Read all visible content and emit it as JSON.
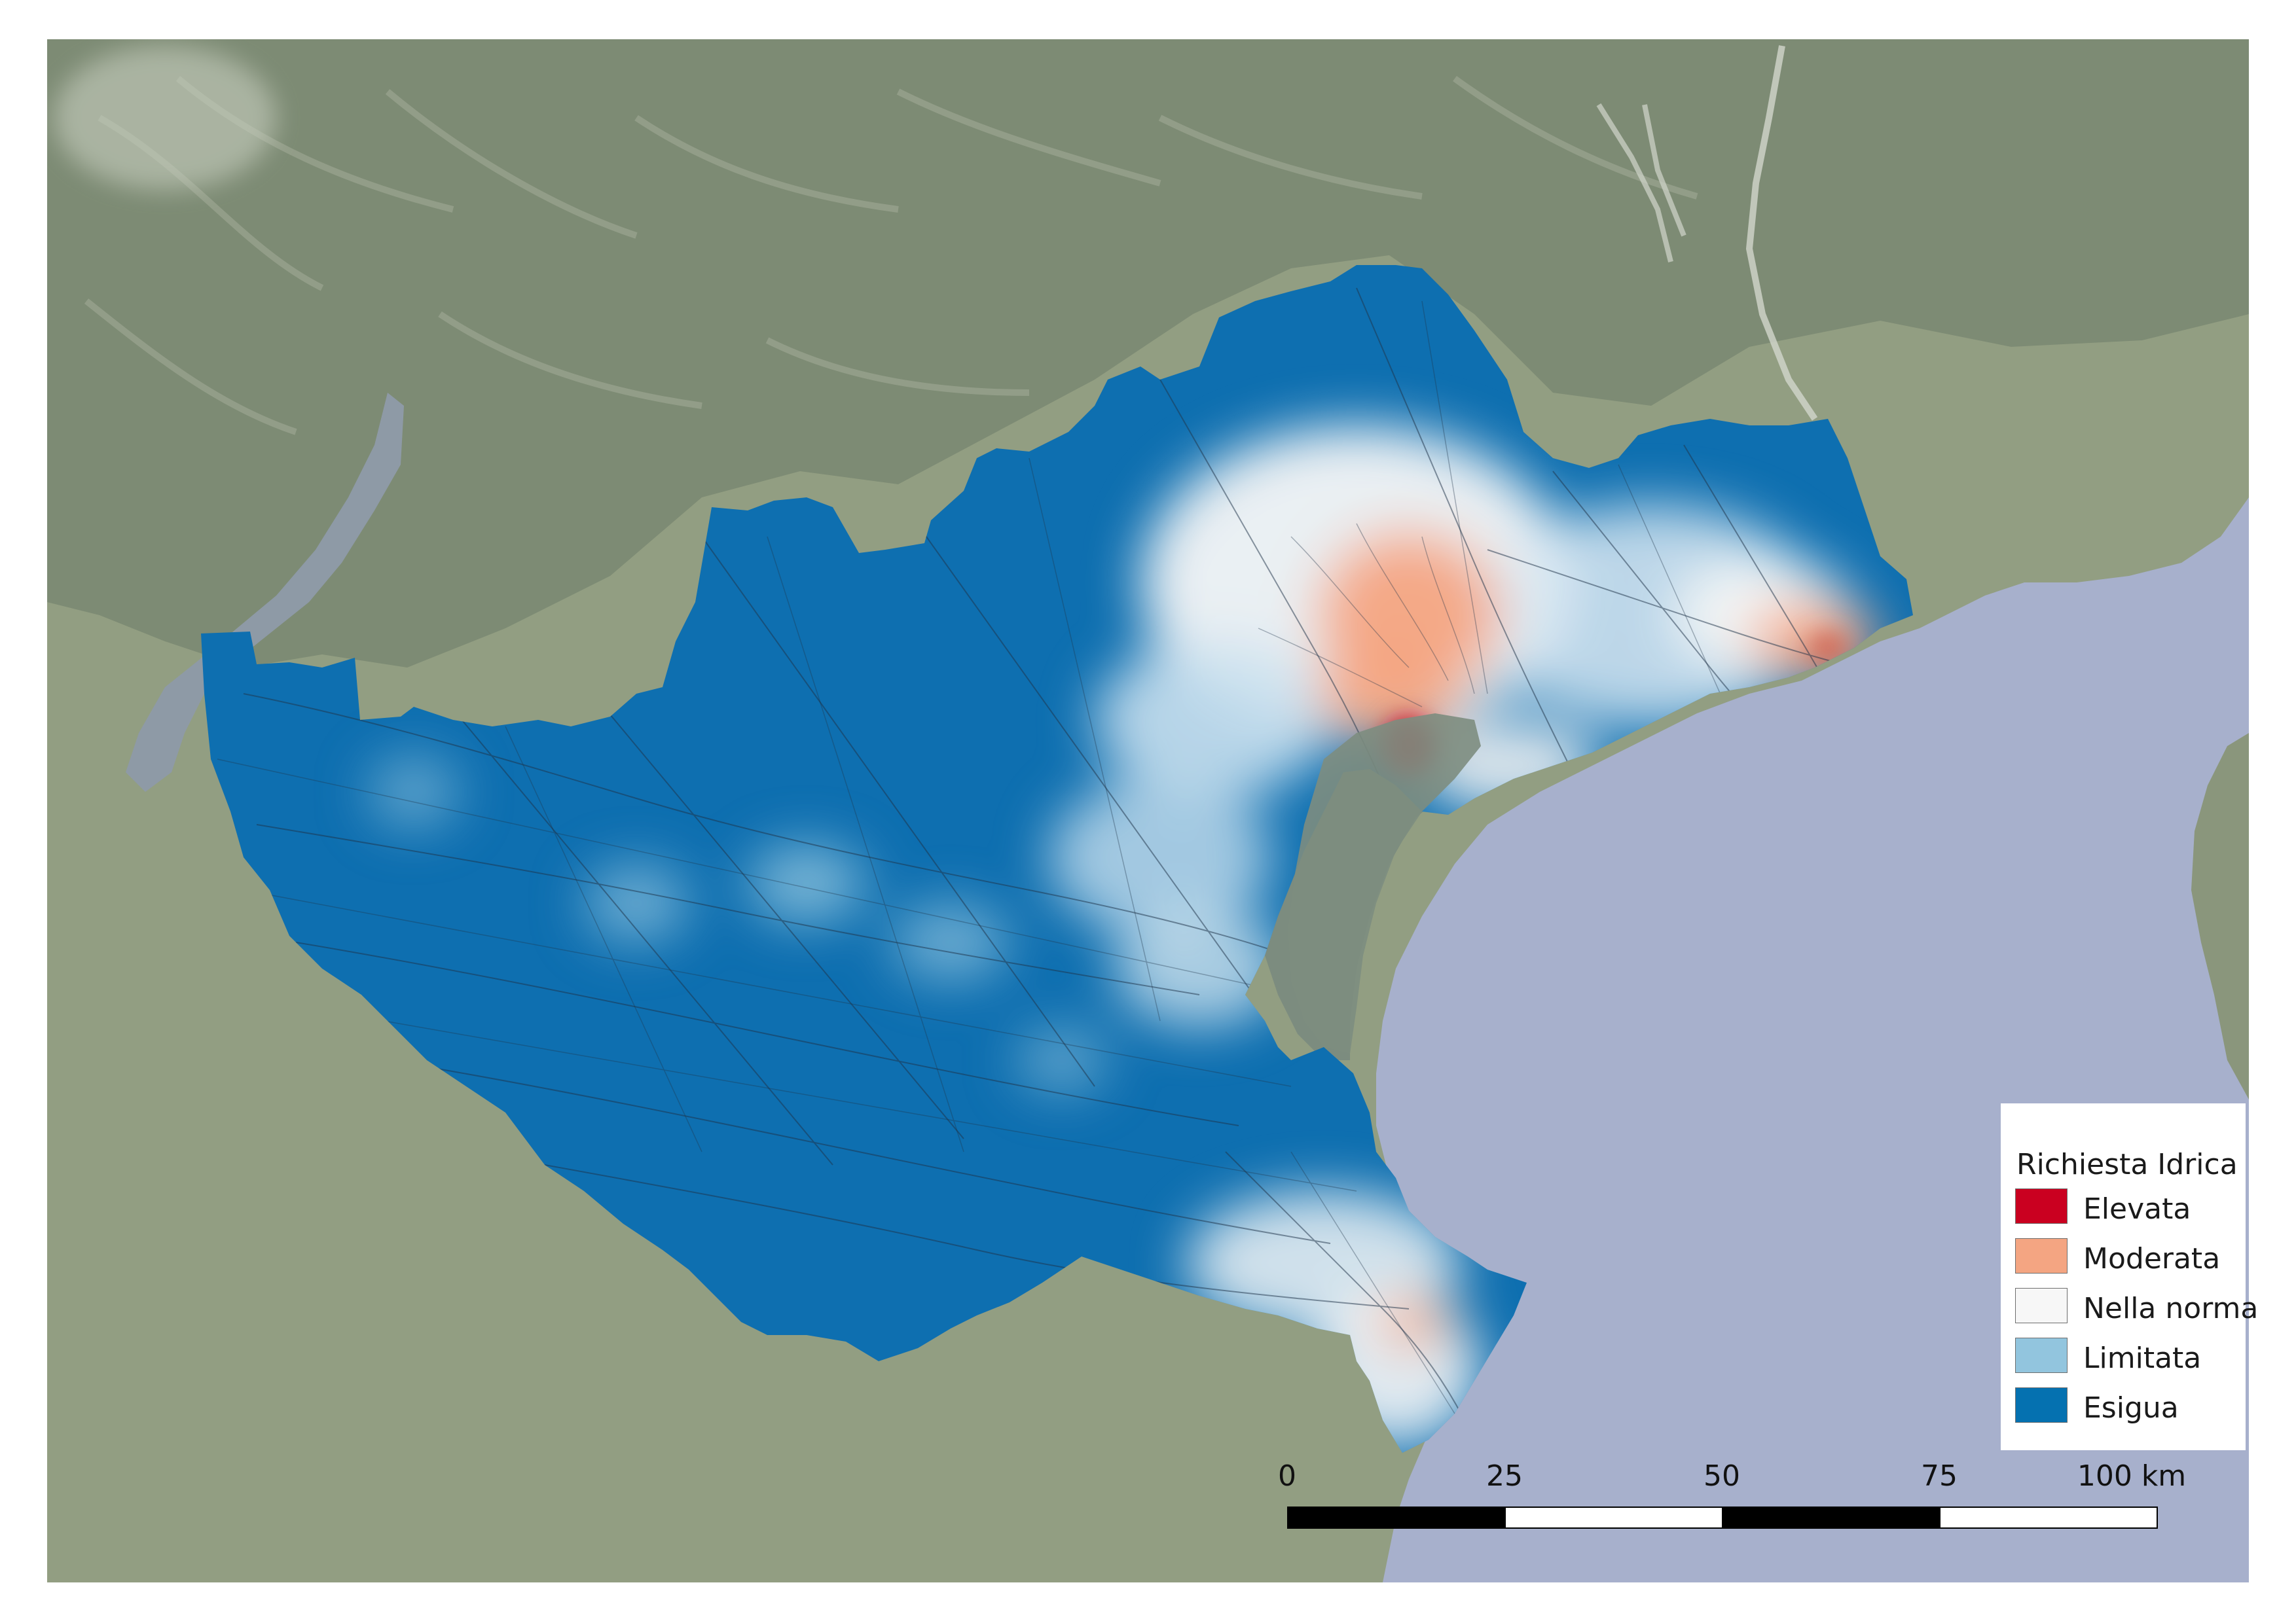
{
  "legend": {
    "title": "Richiesta Idrica",
    "items": [
      {
        "label": "Elevata",
        "color": "#ca0020"
      },
      {
        "label": "Moderata",
        "color": "#f4a582"
      },
      {
        "label": "Nella norma",
        "color": "#f7f7f7"
      },
      {
        "label": "Limitata",
        "color": "#92c5de"
      },
      {
        "label": "Esigua",
        "color": "#0571b0"
      }
    ]
  },
  "scalebar": {
    "labels": [
      "0",
      "25",
      "50",
      "75",
      "100 km"
    ],
    "segment_colors": [
      "#000000",
      "#ffffff",
      "#000000",
      "#ffffff"
    ]
  },
  "map": {
    "sea_color": "#a7b0cc",
    "land_color": "#8f9b7e",
    "mountain_color": "#7d8a74",
    "lagoon_color": "#7f8f82"
  }
}
